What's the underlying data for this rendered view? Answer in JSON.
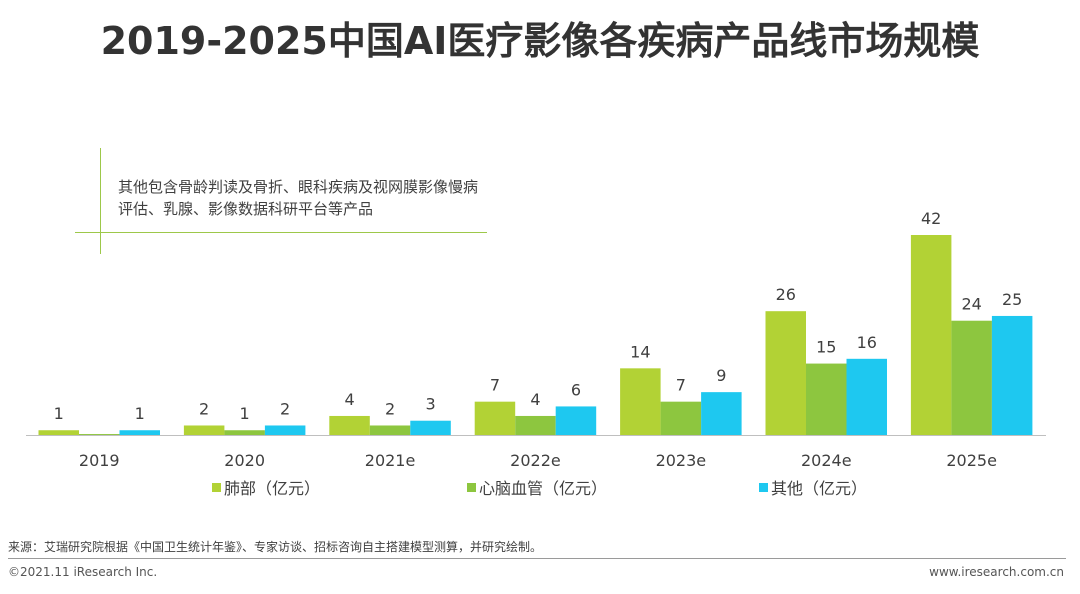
{
  "title": "2019-2025中国AI医疗影像各疾病产品线市场规模",
  "note": "其他包含骨龄判读及骨折、眼科疾病及视网膜影像慢病评估、乳腺、影像数据科研平台等产品",
  "source": "来源：艾瑞研究院根据《中国卫生统计年鉴》、专家访谈、招标咨询自主搭建模型测算，并研究绘制。",
  "copyright": "©2021.11 iResearch Inc.",
  "website": "www.iresearch.com.cn",
  "colors": {
    "lung": "#b2d235",
    "cardio": "#8dc63f",
    "other": "#1ec8f0",
    "axis": "#bfbfbf",
    "text": "#404040"
  },
  "chart_data": {
    "type": "bar",
    "title": "2019-2025中国AI医疗影像各疾病产品线市场规模",
    "xlabel": "",
    "ylabel": "亿元",
    "categories": [
      "2019",
      "2020",
      "2021e",
      "2022e",
      "2023e",
      "2024e",
      "2025e"
    ],
    "series": [
      {
        "name": "肺部（亿元）",
        "values": [
          1,
          2,
          4,
          7,
          14,
          26,
          42
        ],
        "labels": [
          "1",
          "2",
          "4",
          "7",
          "14",
          "26",
          "42"
        ]
      },
      {
        "name": "心脑血管（亿元）",
        "values": [
          0.2,
          1,
          2,
          4,
          7,
          15,
          24
        ],
        "labels": [
          "",
          "1",
          "2",
          "4",
          "7",
          "15",
          "24"
        ]
      },
      {
        "name": "其他（亿元）",
        "values": [
          1,
          2,
          3,
          6,
          9,
          16,
          25
        ],
        "labels": [
          "1",
          "2",
          "3",
          "6",
          "9",
          "16",
          "25"
        ]
      }
    ],
    "ylim": [
      0,
      45
    ],
    "legend": "bottom",
    "grid": false
  }
}
